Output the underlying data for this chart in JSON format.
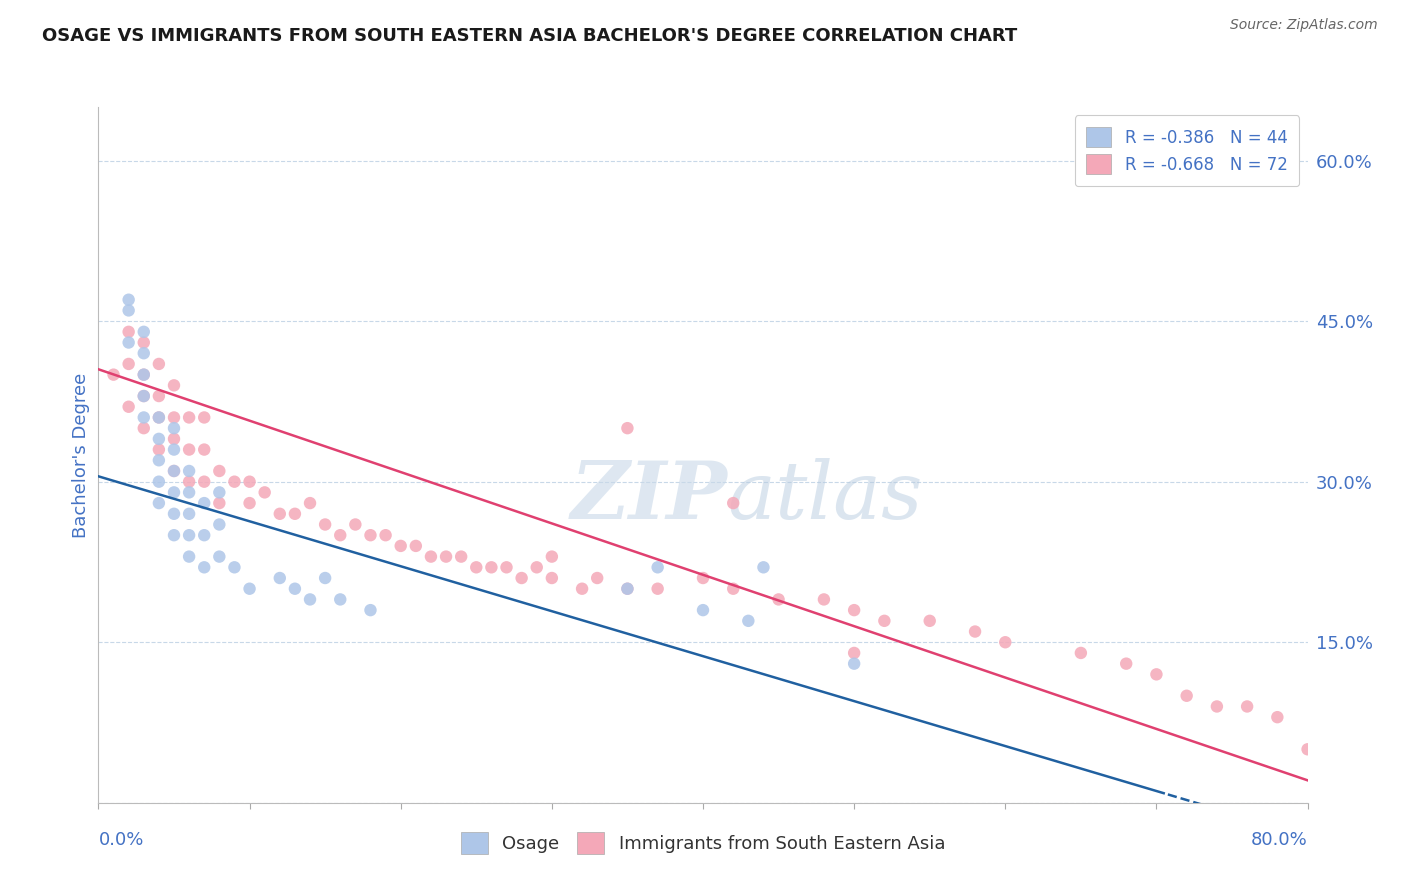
{
  "title": "OSAGE VS IMMIGRANTS FROM SOUTH EASTERN ASIA BACHELOR'S DEGREE CORRELATION CHART",
  "source_text": "Source: ZipAtlas.com",
  "ylabel": "Bachelor's Degree",
  "right_yticks": [
    0.0,
    0.15,
    0.3,
    0.45,
    0.6
  ],
  "right_yticklabels": [
    "",
    "15.0%",
    "30.0%",
    "45.0%",
    "60.0%"
  ],
  "xlim": [
    0.0,
    0.8
  ],
  "ylim": [
    0.0,
    0.65
  ],
  "legend_top": [
    {
      "label": "R = -0.386   N = 44",
      "color": "#aec6e8"
    },
    {
      "label": "R = -0.668   N = 72",
      "color": "#f4b8c1"
    }
  ],
  "legend_bottom": [
    {
      "label": "Osage",
      "color": "#aec6e8"
    },
    {
      "label": "Immigrants from South Eastern Asia",
      "color": "#f4b8c1"
    }
  ],
  "osage_x": [
    0.02,
    0.02,
    0.02,
    0.03,
    0.03,
    0.03,
    0.03,
    0.03,
    0.04,
    0.04,
    0.04,
    0.04,
    0.04,
    0.05,
    0.05,
    0.05,
    0.05,
    0.05,
    0.05,
    0.06,
    0.06,
    0.06,
    0.06,
    0.06,
    0.07,
    0.07,
    0.07,
    0.08,
    0.08,
    0.08,
    0.09,
    0.1,
    0.12,
    0.13,
    0.14,
    0.15,
    0.16,
    0.18,
    0.35,
    0.37,
    0.4,
    0.43,
    0.44,
    0.5
  ],
  "osage_y": [
    0.43,
    0.46,
    0.47,
    0.36,
    0.38,
    0.4,
    0.42,
    0.44,
    0.28,
    0.3,
    0.32,
    0.34,
    0.36,
    0.25,
    0.27,
    0.29,
    0.31,
    0.33,
    0.35,
    0.23,
    0.25,
    0.27,
    0.29,
    0.31,
    0.22,
    0.25,
    0.28,
    0.23,
    0.26,
    0.29,
    0.22,
    0.2,
    0.21,
    0.2,
    0.19,
    0.21,
    0.19,
    0.18,
    0.2,
    0.22,
    0.18,
    0.17,
    0.22,
    0.13
  ],
  "immigrants_x": [
    0.01,
    0.02,
    0.02,
    0.02,
    0.03,
    0.03,
    0.03,
    0.03,
    0.04,
    0.04,
    0.04,
    0.04,
    0.05,
    0.05,
    0.05,
    0.05,
    0.06,
    0.06,
    0.06,
    0.07,
    0.07,
    0.07,
    0.08,
    0.08,
    0.09,
    0.1,
    0.1,
    0.11,
    0.12,
    0.13,
    0.14,
    0.15,
    0.16,
    0.17,
    0.18,
    0.19,
    0.2,
    0.21,
    0.22,
    0.23,
    0.24,
    0.25,
    0.26,
    0.27,
    0.28,
    0.29,
    0.3,
    0.3,
    0.32,
    0.33,
    0.35,
    0.37,
    0.4,
    0.42,
    0.45,
    0.48,
    0.5,
    0.52,
    0.55,
    0.58,
    0.6,
    0.65,
    0.68,
    0.7,
    0.72,
    0.74,
    0.76,
    0.78,
    0.8,
    0.35,
    0.42,
    0.5
  ],
  "immigrants_y": [
    0.4,
    0.37,
    0.41,
    0.44,
    0.35,
    0.38,
    0.4,
    0.43,
    0.33,
    0.36,
    0.38,
    0.41,
    0.31,
    0.34,
    0.36,
    0.39,
    0.3,
    0.33,
    0.36,
    0.3,
    0.33,
    0.36,
    0.28,
    0.31,
    0.3,
    0.28,
    0.3,
    0.29,
    0.27,
    0.27,
    0.28,
    0.26,
    0.25,
    0.26,
    0.25,
    0.25,
    0.24,
    0.24,
    0.23,
    0.23,
    0.23,
    0.22,
    0.22,
    0.22,
    0.21,
    0.22,
    0.21,
    0.23,
    0.2,
    0.21,
    0.2,
    0.2,
    0.21,
    0.2,
    0.19,
    0.19,
    0.18,
    0.17,
    0.17,
    0.16,
    0.15,
    0.14,
    0.13,
    0.12,
    0.1,
    0.09,
    0.09,
    0.08,
    0.05,
    0.35,
    0.28,
    0.14
  ],
  "osage_line_color": "#2060a0",
  "immigrants_line_color": "#e04070",
  "osage_scatter_color": "#aec6e8",
  "immigrants_scatter_color": "#f4a8b8",
  "background_color": "#ffffff",
  "grid_color": "#c8d8e8",
  "title_color": "#1a1a1a",
  "source_color": "#666666",
  "tick_color": "#4472c4",
  "osage_line_intercept": 0.305,
  "osage_line_slope": -0.42,
  "immigrants_line_intercept": 0.405,
  "immigrants_line_slope": -0.48
}
